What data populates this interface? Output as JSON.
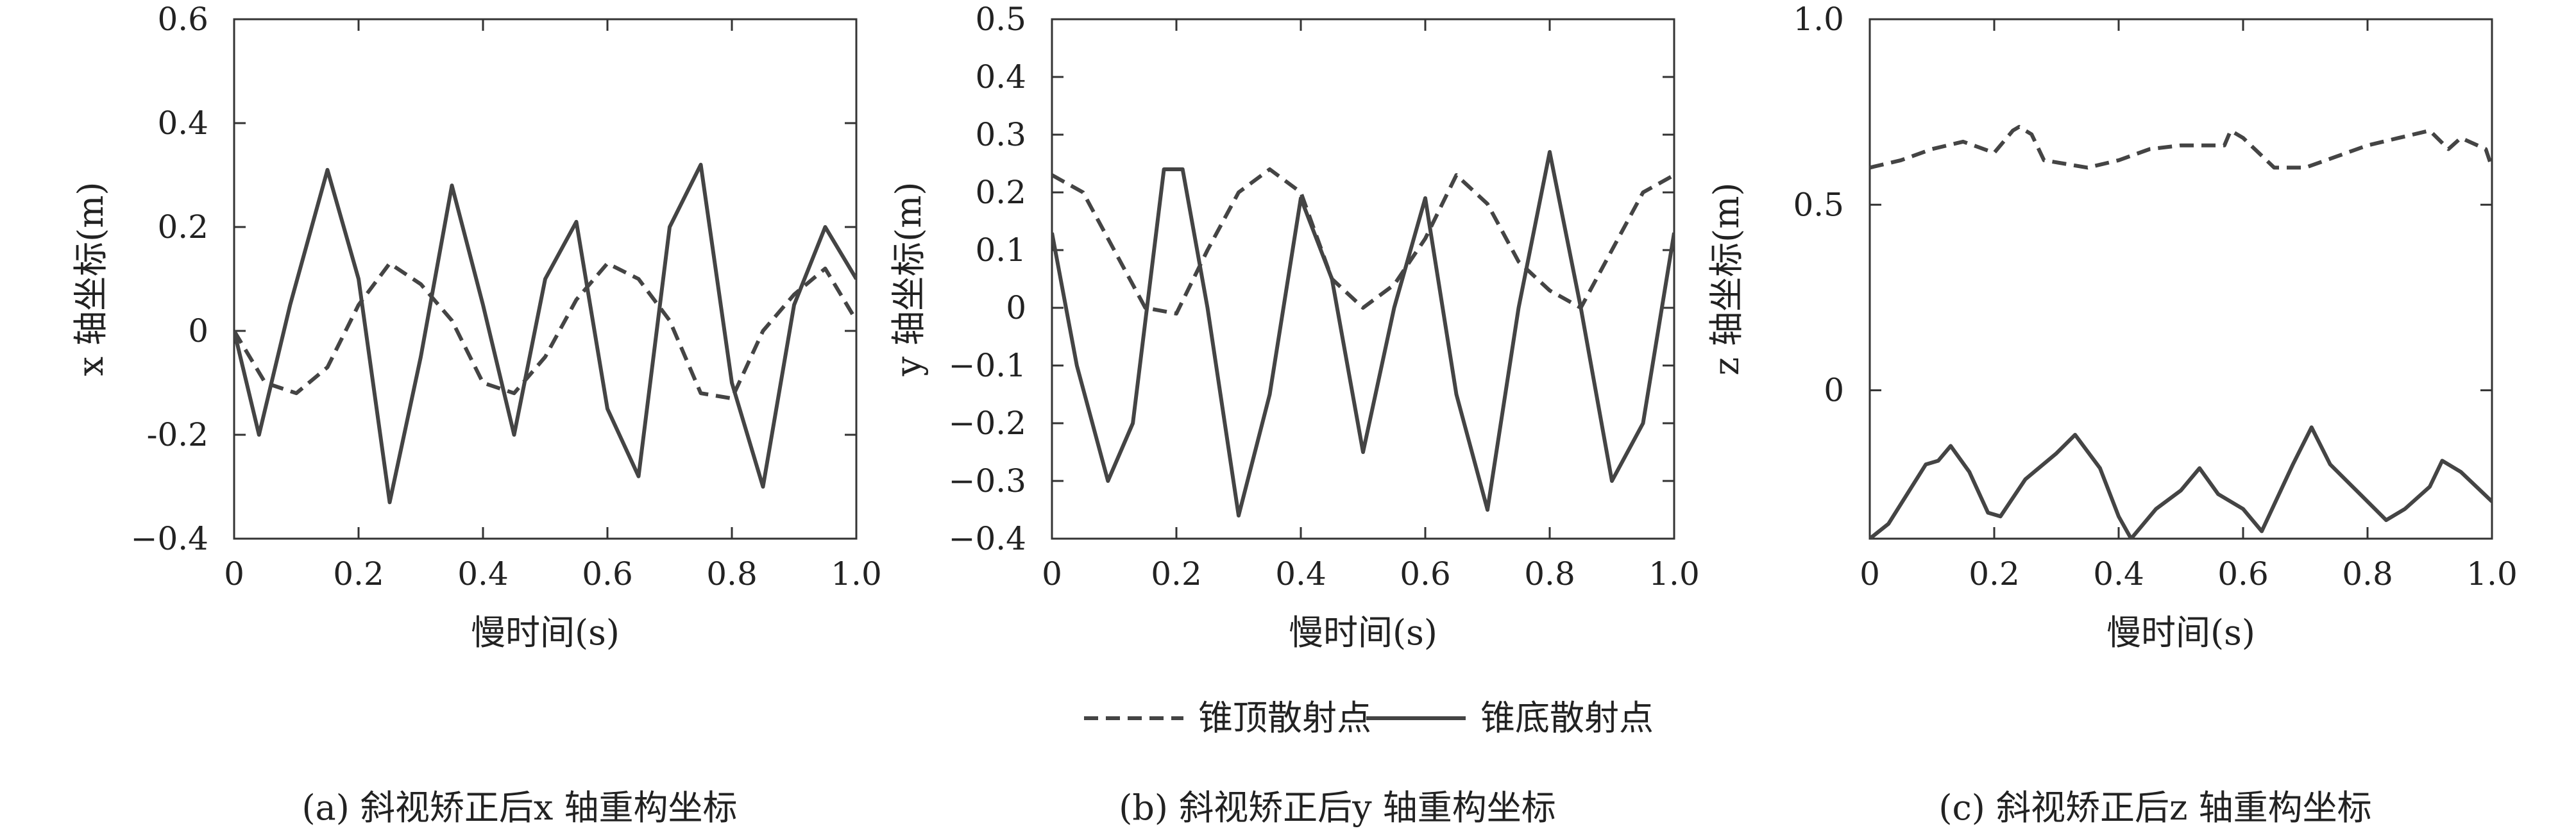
{
  "chart_data": [
    {
      "type": "line",
      "caption": "(a) 斜视矫正后x 轴重构坐标",
      "xlabel": "慢时间(s)",
      "ylabel": "x 轴坐标(m)",
      "xlim": [
        0,
        1.0
      ],
      "ylim": [
        -0.4,
        0.6
      ],
      "xticks": [
        0,
        0.2,
        0.4,
        0.6,
        0.8,
        1.0
      ],
      "xtick_labels": [
        "0",
        "0.2",
        "0.4",
        "0.6",
        "0.8",
        "1.0"
      ],
      "yticks": [
        -0.4,
        -0.2,
        0,
        0.2,
        0.4,
        0.6
      ],
      "ytick_labels": [
        "−0.4",
        "-0.2",
        "0",
        "0.2",
        "0.4",
        "0.6"
      ],
      "grid": false,
      "series": [
        {
          "name": "锥顶散射点",
          "style": "dashed",
          "x": [
            0,
            0.05,
            0.1,
            0.15,
            0.2,
            0.25,
            0.3,
            0.35,
            0.4,
            0.45,
            0.5,
            0.55,
            0.6,
            0.65,
            0.7,
            0.75,
            0.8,
            0.85,
            0.9,
            0.95,
            1.0
          ],
          "y": [
            0,
            -0.1,
            -0.12,
            -0.07,
            0.05,
            0.13,
            0.09,
            0.02,
            -0.1,
            -0.12,
            -0.05,
            0.06,
            0.13,
            0.1,
            0.02,
            -0.12,
            -0.13,
            0,
            0.07,
            0.12,
            0.02
          ]
        },
        {
          "name": "锥底散射点",
          "style": "solid",
          "x": [
            0,
            0.04,
            0.09,
            0.15,
            0.2,
            0.25,
            0.3,
            0.35,
            0.4,
            0.45,
            0.5,
            0.55,
            0.6,
            0.65,
            0.7,
            0.75,
            0.8,
            0.85,
            0.9,
            0.95,
            1.0
          ],
          "y": [
            0,
            -0.2,
            0.05,
            0.31,
            0.1,
            -0.33,
            -0.05,
            0.28,
            0.05,
            -0.2,
            0.1,
            0.21,
            -0.15,
            -0.28,
            0.2,
            0.32,
            -0.1,
            -0.3,
            0.05,
            0.2,
            0.1
          ]
        }
      ]
    },
    {
      "type": "line",
      "caption": "(b) 斜视矫正后y 轴重构坐标",
      "xlabel": "慢时间(s)",
      "ylabel": "y 轴坐标(m)",
      "xlim": [
        0,
        1.0
      ],
      "ylim": [
        -0.4,
        0.5
      ],
      "xticks": [
        0,
        0.2,
        0.4,
        0.6,
        0.8,
        1.0
      ],
      "xtick_labels": [
        "0",
        "0.2",
        "0.4",
        "0.6",
        "0.8",
        "1.0"
      ],
      "yticks": [
        -0.4,
        -0.3,
        -0.2,
        -0.1,
        0,
        0.1,
        0.2,
        0.3,
        0.4,
        0.5
      ],
      "ytick_labels": [
        "−0.4",
        "−0.3",
        "−0.2",
        "−0.1",
        "0",
        "0.1",
        "0.2",
        "0.3",
        "0.4",
        "0.5"
      ],
      "grid": false,
      "series": [
        {
          "name": "锥顶散射点",
          "style": "dashed",
          "x": [
            0,
            0.05,
            0.1,
            0.15,
            0.2,
            0.25,
            0.3,
            0.35,
            0.4,
            0.45,
            0.5,
            0.55,
            0.6,
            0.65,
            0.7,
            0.75,
            0.8,
            0.85,
            0.9,
            0.95,
            1.0
          ],
          "y": [
            0.23,
            0.2,
            0.1,
            0,
            -0.01,
            0.1,
            0.2,
            0.24,
            0.2,
            0.05,
            0,
            0.04,
            0.12,
            0.23,
            0.18,
            0.08,
            0.03,
            0,
            0.1,
            0.2,
            0.23
          ]
        },
        {
          "name": "锥底散射点",
          "style": "solid",
          "x": [
            0,
            0.04,
            0.09,
            0.13,
            0.18,
            0.21,
            0.25,
            0.3,
            0.35,
            0.4,
            0.45,
            0.5,
            0.55,
            0.6,
            0.65,
            0.7,
            0.75,
            0.8,
            0.85,
            0.9,
            0.95,
            1.0
          ],
          "y": [
            0.13,
            -0.1,
            -0.3,
            -0.2,
            0.24,
            0.24,
            0,
            -0.36,
            -0.15,
            0.19,
            0.05,
            -0.25,
            0,
            0.19,
            -0.15,
            -0.35,
            0,
            0.27,
            0,
            -0.3,
            -0.2,
            0.13
          ]
        }
      ]
    },
    {
      "type": "line",
      "caption": "(c) 斜视矫正后z 轴重构坐标",
      "xlabel": "慢时间(s)",
      "ylabel": "z 轴坐标(m)",
      "xlim": [
        0,
        1.0
      ],
      "ylim": [
        -0.4,
        1.0
      ],
      "xticks": [
        0,
        0.2,
        0.4,
        0.6,
        0.8,
        1.0
      ],
      "xtick_labels": [
        "0",
        "0.2",
        "0.4",
        "0.6",
        "0.8",
        "1.0"
      ],
      "yticks": [
        0,
        0.5,
        1.0
      ],
      "ytick_labels": [
        "0",
        "0.5",
        "1.0"
      ],
      "grid": false,
      "series": [
        {
          "name": "锥顶散射点",
          "style": "dashed",
          "x": [
            0,
            0.05,
            0.1,
            0.15,
            0.2,
            0.23,
            0.24,
            0.26,
            0.28,
            0.35,
            0.4,
            0.45,
            0.5,
            0.55,
            0.57,
            0.58,
            0.6,
            0.65,
            0.7,
            0.75,
            0.8,
            0.85,
            0.9,
            0.93,
            0.95,
            0.99,
            1.0
          ],
          "y": [
            0.6,
            0.62,
            0.65,
            0.67,
            0.64,
            0.7,
            0.71,
            0.69,
            0.62,
            0.6,
            0.62,
            0.65,
            0.66,
            0.66,
            0.66,
            0.7,
            0.68,
            0.6,
            0.6,
            0.63,
            0.66,
            0.68,
            0.7,
            0.65,
            0.68,
            0.65,
            0.6
          ]
        },
        {
          "name": "锥底散射点",
          "style": "solid",
          "x": [
            0,
            0.03,
            0.06,
            0.09,
            0.11,
            0.13,
            0.16,
            0.19,
            0.21,
            0.25,
            0.3,
            0.33,
            0.37,
            0.4,
            0.42,
            0.46,
            0.5,
            0.53,
            0.56,
            0.6,
            0.63,
            0.68,
            0.71,
            0.74,
            0.8,
            0.83,
            0.86,
            0.9,
            0.92,
            0.95,
            1.0
          ],
          "y": [
            -0.4,
            -0.36,
            -0.28,
            -0.2,
            -0.19,
            -0.15,
            -0.22,
            -0.33,
            -0.34,
            -0.24,
            -0.17,
            -0.12,
            -0.21,
            -0.34,
            -0.4,
            -0.32,
            -0.27,
            -0.21,
            -0.28,
            -0.32,
            -0.38,
            -0.2,
            -0.1,
            -0.2,
            -0.3,
            -0.35,
            -0.32,
            -0.26,
            -0.19,
            -0.22,
            -0.3
          ]
        }
      ]
    }
  ],
  "legend": {
    "items": [
      {
        "label": "锥顶散射点",
        "style": "dashed"
      },
      {
        "label": "锥底散射点",
        "style": "solid"
      }
    ],
    "placement": "bottom-center"
  }
}
